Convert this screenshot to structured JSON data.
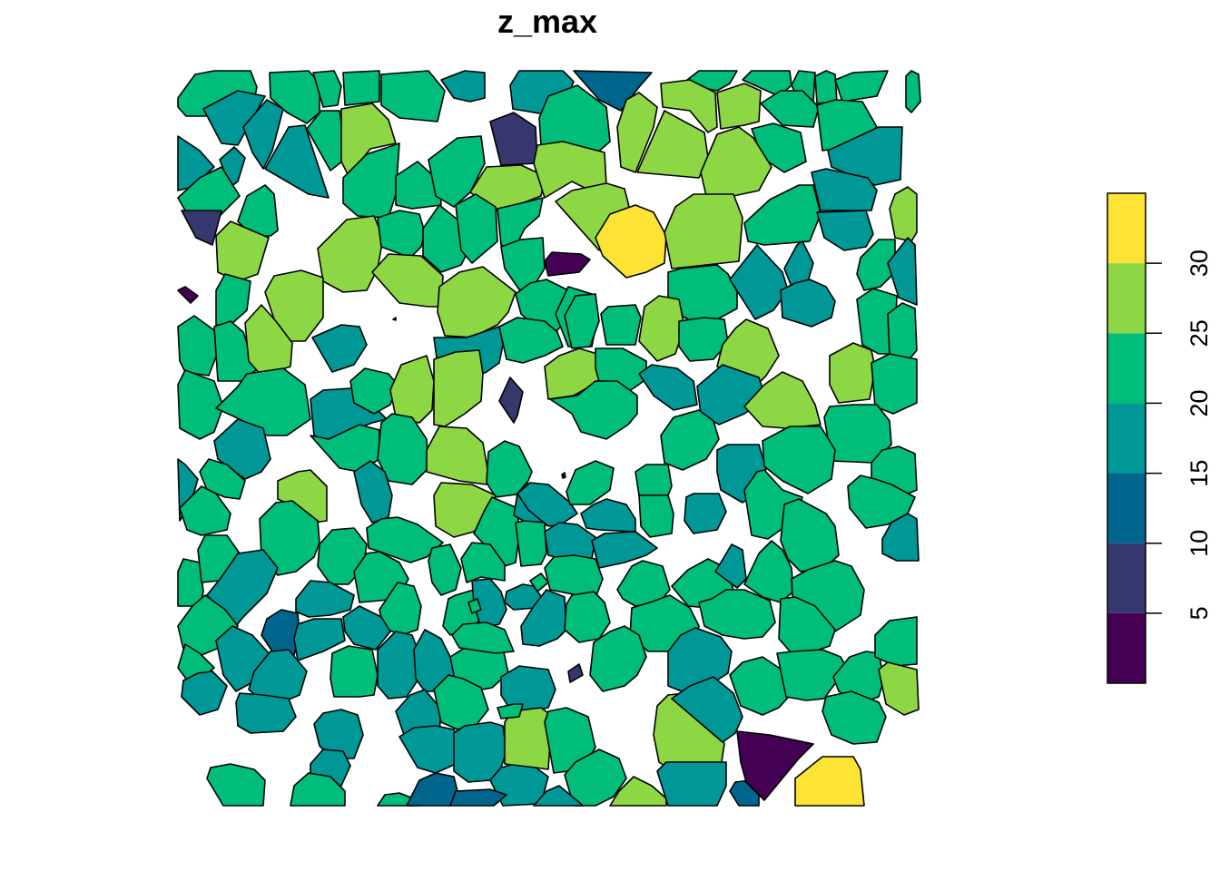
{
  "title": "z_max",
  "legend": {
    "breaks": [
      0,
      5,
      10,
      15,
      20,
      25,
      30,
      35
    ],
    "tick_labels": [
      "5",
      "10",
      "15",
      "20",
      "25",
      "30"
    ],
    "colors": [
      "#440154",
      "#35376E",
      "#00658C",
      "#009797",
      "#00BE7A",
      "#8DD644",
      "#FDE333"
    ]
  },
  "map_data": {
    "type": "choropleth polygons (Voronoi-like cells)",
    "variable": "z_max",
    "value_bins": [
      "0-5",
      "5-10",
      "10-15",
      "15-20",
      "20-25",
      "25-30",
      "30-35"
    ],
    "dominant_bins": [
      "15-20",
      "20-25",
      "25-30"
    ]
  }
}
